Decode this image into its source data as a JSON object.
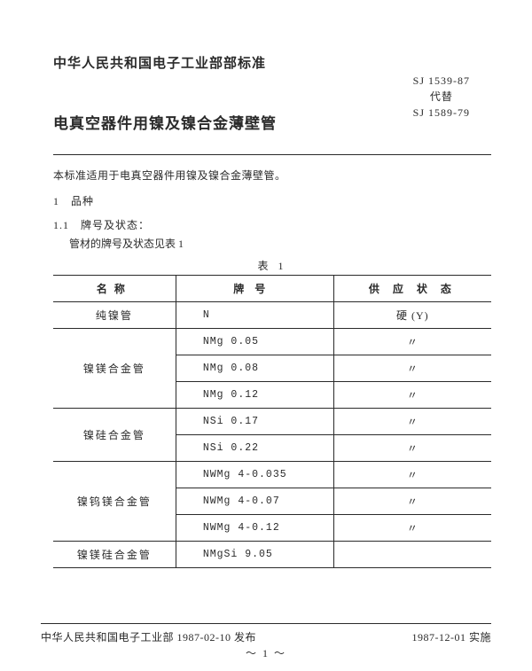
{
  "issuer": "中华人民共和国电子工业部部标准",
  "standard_id_line1": "SJ 1539-87",
  "standard_id_line2": "代替",
  "standard_id_line3": "SJ 1589-79",
  "title": "电真空器件用镍及镍合金薄壁管",
  "scope": "本标准适用于电真空器件用镍及镍合金薄壁管。",
  "sec1_heading": "1　品种",
  "sec1_1_heading": "1.1　牌号及状态：",
  "sec1_1_text": "管材的牌号及状态见表 1",
  "table_caption": "表 1",
  "table": {
    "head": {
      "name": "名称",
      "code": "牌号",
      "supply": "供 应 状 态"
    },
    "rows": [
      {
        "group": "纯镍管",
        "group_rowspan": 1,
        "code": "N",
        "supply": "硬 (Y)"
      },
      {
        "group": "镍镁合金管",
        "group_rowspan": 3,
        "code": "NMg 0.05",
        "supply": "〃"
      },
      {
        "group": null,
        "code": "NMg 0.08",
        "supply": "〃"
      },
      {
        "group": null,
        "code": "NMg 0.12",
        "supply": "〃"
      },
      {
        "group": "镍硅合金管",
        "group_rowspan": 2,
        "code": "NSi 0.17",
        "supply": "〃"
      },
      {
        "group": null,
        "code": "NSi 0.22",
        "supply": "〃"
      },
      {
        "group": "镍钨镁合金管",
        "group_rowspan": 3,
        "code": "NWMg 4-0.035",
        "supply": "〃"
      },
      {
        "group": null,
        "code": "NWMg 4-0.07",
        "supply": "〃"
      },
      {
        "group": null,
        "code": "NWMg 4-0.12",
        "supply": "〃"
      },
      {
        "group": "镍镁硅合金管",
        "group_rowspan": 1,
        "code": "NMgSi 9.05",
        "supply": ""
      }
    ]
  },
  "footer_left": "中华人民共和国电子工业部 1987-02-10 发布",
  "footer_right": "1987-12-01 实施",
  "page_number": "～ 1 ～"
}
